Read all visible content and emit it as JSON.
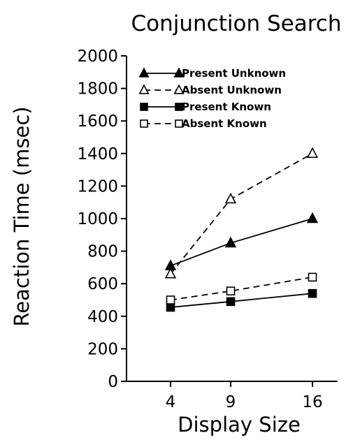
{
  "chart_data": {
    "type": "line",
    "title": "Conjunction Search",
    "xlabel": "Display Size",
    "ylabel": "Reaction Time (msec)",
    "x_categories": [
      4,
      9,
      16
    ],
    "ylim": [
      0,
      2000
    ],
    "yticks": [
      0,
      200,
      400,
      600,
      800,
      1000,
      1200,
      1400,
      1600,
      1800,
      2000
    ],
    "grid": false,
    "legend_position": "top-left",
    "series": [
      {
        "name": "Present Unknown",
        "marker": "filled-triangle",
        "line": "solid",
        "values": [
          710,
          850,
          1000
        ]
      },
      {
        "name": "Absent Unknown",
        "marker": "open-triangle",
        "line": "dashed",
        "values": [
          660,
          1120,
          1400
        ]
      },
      {
        "name": "Present Known",
        "marker": "filled-square",
        "line": "solid",
        "values": [
          455,
          490,
          540
        ]
      },
      {
        "name": "Absent Known",
        "marker": "open-square",
        "line": "dashed",
        "values": [
          500,
          555,
          640
        ]
      }
    ]
  }
}
